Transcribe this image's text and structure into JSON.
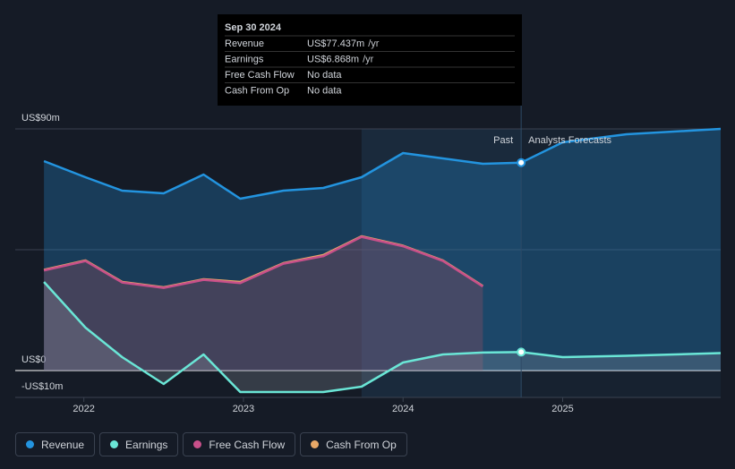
{
  "chart_data": {
    "type": "line",
    "x": [
      2021.75,
      2022.01,
      2022.24,
      2022.5,
      2022.75,
      2022.98,
      2023.25,
      2023.5,
      2023.74,
      2024.0,
      2024.25,
      2024.5,
      2024.74,
      2025.0,
      2025.4,
      2025.99
    ],
    "series": [
      {
        "name": "Revenue",
        "color": "#2394df",
        "fill": "rgba(35,148,223,0.28)",
        "values": [
          78,
          72,
          67,
          66,
          73,
          64,
          67,
          68,
          72,
          81,
          79,
          77,
          77.437,
          85,
          88,
          90
        ]
      },
      {
        "name": "Earnings",
        "color": "#6ae6d6",
        "fill": "rgba(150,160,170,0.25)",
        "values": [
          33,
          16,
          5,
          -5,
          6,
          -8,
          -8,
          -8,
          -6,
          3,
          6,
          6.7,
          6.868,
          5,
          5.5,
          6.5
        ]
      },
      {
        "name": "Free Cash Flow",
        "color": "#c8508a",
        "fill": "rgba(170,70,90,0.22)",
        "values": [
          37.3,
          40.8,
          32.8,
          30.8,
          33.8,
          32.6,
          39.8,
          42.6,
          49.8,
          46.3,
          40.8,
          31.3,
          null,
          null,
          null,
          null
        ]
      },
      {
        "name": "Cash From Op",
        "color": "#e8a867",
        "fill": "rgba(120,100,110,0.15)",
        "values": [
          37.5,
          41,
          33,
          31,
          34,
          33,
          40,
          43,
          50,
          46.5,
          41,
          31.5,
          null,
          null,
          null,
          null
        ]
      }
    ],
    "xlim": [
      2021.57,
      2025.99
    ],
    "xticks": [
      2022,
      2023,
      2024,
      2025
    ],
    "ylim": [
      -10,
      90
    ],
    "yticks": [
      {
        "value": 90,
        "label": "US$90m"
      },
      {
        "value": 45,
        "label": null
      },
      {
        "value": 0,
        "label": "US$0"
      },
      {
        "value": -10,
        "label": "-US$10m"
      }
    ],
    "grid": true,
    "highlight_start": 2023.74,
    "divider": 2024.74,
    "past_label": "Past",
    "forecast_label": "Analysts Forecasts",
    "tooltip": {
      "date": "Sep 30 2024",
      "rows": [
        {
          "label": "Revenue",
          "value": "US$77.437m",
          "unit": "/yr"
        },
        {
          "label": "Earnings",
          "value": "US$6.868m",
          "unit": "/yr"
        },
        {
          "label": "Free Cash Flow",
          "value": "No data",
          "unit": null
        },
        {
          "label": "Cash From Op",
          "value": "No data",
          "unit": null
        }
      ]
    }
  }
}
